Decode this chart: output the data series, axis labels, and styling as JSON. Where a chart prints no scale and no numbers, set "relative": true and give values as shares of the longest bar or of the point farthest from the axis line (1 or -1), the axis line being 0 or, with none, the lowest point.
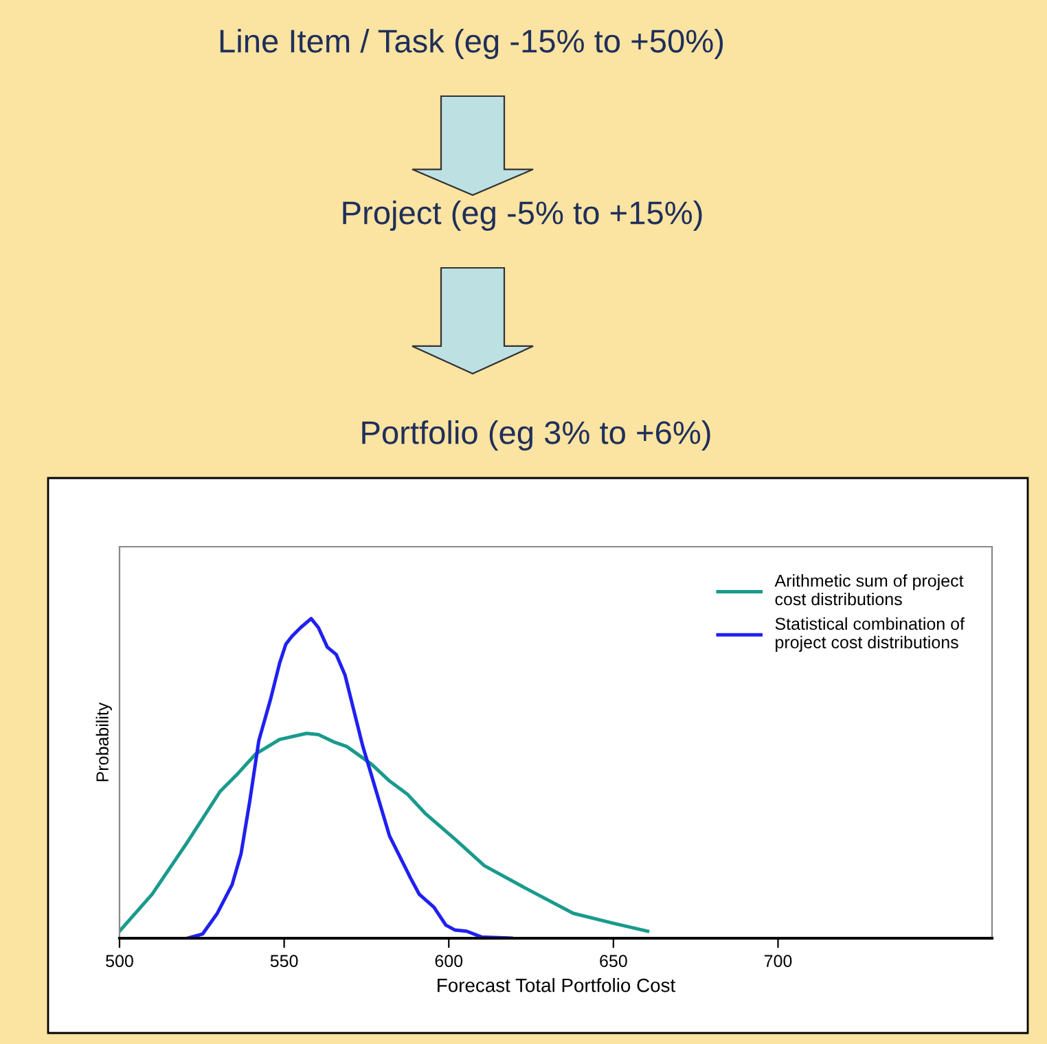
{
  "chart_data": {
    "type": "line",
    "title": "Line Item / Task (eg -15% to +50%)",
    "annotations": [
      "Project (eg -5% to +15%)",
      "Portfolio (eg 3% to +6%)"
    ],
    "xlabel": "Forecast Total Portfolio Cost",
    "ylabel": "Probability",
    "relative": true,
    "xlim": [
      500,
      765
    ],
    "xticks": [
      500,
      550,
      600,
      650,
      700
    ],
    "legend": "top right",
    "grid": false,
    "marker": "none",
    "line_style": "solid",
    "series": [
      {
        "name": "Arithmetic sum of project\ncost distributions",
        "color": "#1a9a8c",
        "x": [
          500,
          509.9,
          520.7,
          530.6,
          536.0,
          541.4,
          548.6,
          556.8,
          560.4,
          564.9,
          569.0,
          576.6,
          582.0,
          587.4,
          592.8,
          601.8,
          610.8,
          623.4,
          637.8,
          649.9,
          660.4
        ],
        "values": [
          0.022,
          0.138,
          0.302,
          0.46,
          0.516,
          0.577,
          0.622,
          0.641,
          0.637,
          0.615,
          0.6,
          0.544,
          0.492,
          0.451,
          0.391,
          0.311,
          0.227,
          0.156,
          0.078,
          0.047,
          0.022
        ]
      },
      {
        "name": "Statistical combination of\nproject cost distributions",
        "color": "#2020f0",
        "x": [
          520.7,
          525.2,
          529.7,
          534.2,
          536.9,
          539.6,
          542.3,
          545.9,
          548.6,
          550.5,
          552.3,
          555.0,
          558.2,
          560.4,
          563.1,
          565.8,
          568.5,
          571.2,
          573.9,
          576.6,
          579.3,
          582.0,
          585.6,
          588.3,
          591.0,
          595.5,
          599.1,
          601.8,
          605.4,
          609.9,
          619.0
        ],
        "values": [
          0,
          0.013,
          0.078,
          0.168,
          0.264,
          0.432,
          0.618,
          0.749,
          0.86,
          0.92,
          0.944,
          0.972,
          1.0,
          0.972,
          0.911,
          0.888,
          0.823,
          0.711,
          0.6,
          0.507,
          0.413,
          0.32,
          0.246,
          0.19,
          0.138,
          0.097,
          0.041,
          0.026,
          0.022,
          0.004,
          0
        ]
      }
    ]
  }
}
